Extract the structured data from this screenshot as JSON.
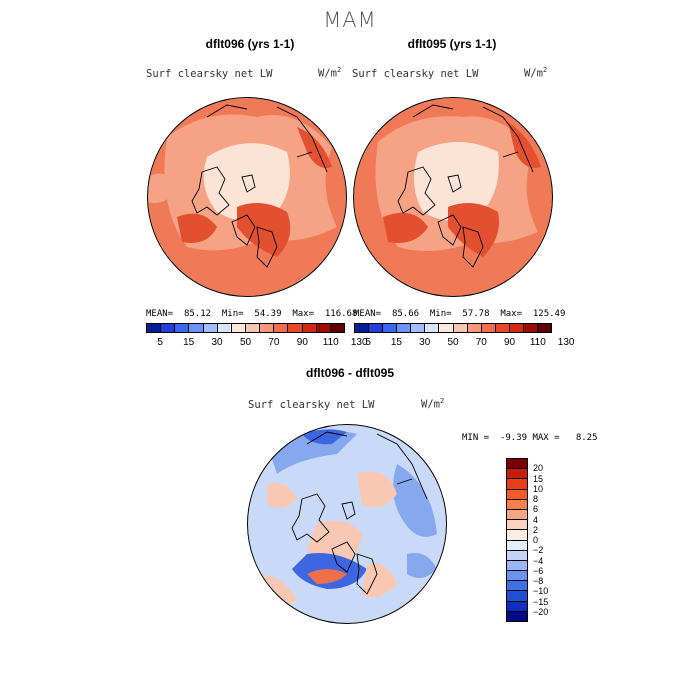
{
  "title": "MAM",
  "panels": [
    {
      "title": "dflt096 (yrs 1-1)",
      "field": "Surf clearsky net LW",
      "unit": "W/m",
      "unit_sup": "2",
      "mean": "85.12",
      "min": "54.39",
      "max": "116.68"
    },
    {
      "title": "dflt095 (yrs 1-1)",
      "field": "Surf clearsky net LW",
      "unit": "W/m",
      "unit_sup": "2",
      "mean": "85.66",
      "min": "57.78",
      "max": "125.49"
    }
  ],
  "diff": {
    "title": "dflt096 - dflt095",
    "field": "Surf clearsky net LW",
    "unit": "W/m",
    "unit_sup": "2",
    "min": "-9.39",
    "max": "8.25"
  },
  "stat_labels": {
    "mean": "MEAN=",
    "min": "Min=",
    "max": "Max=",
    "min_caps": "MIN =",
    "max_caps": "MAX ="
  },
  "colorbar_abs": {
    "colors": [
      "#0a1f8f",
      "#1e3fd8",
      "#3d66ee",
      "#6b92f5",
      "#a2bdf9",
      "#d9e5fb",
      "#fbe7dc",
      "#f7c4ad",
      "#f3977a",
      "#ee6e4f",
      "#e8492d",
      "#cf2a14",
      "#9c0e06",
      "#5e0000"
    ],
    "ticks": [
      "5",
      "15",
      "30",
      "50",
      "70",
      "90",
      "110",
      "130"
    ]
  },
  "colorbar_diff": {
    "colors": [
      "#7a0000",
      "#c81c0c",
      "#e83d16",
      "#f25a26",
      "#f4804d",
      "#f7a583",
      "#fbd2bf",
      "#fdeee4",
      "#e6eefb",
      "#c3d4f6",
      "#98b6f1",
      "#6b93ec",
      "#3f6fe5",
      "#1f4fd6",
      "#0c2fbf",
      "#000b86"
    ],
    "ticks": [
      "20",
      "15",
      "10",
      "8",
      "6",
      "4",
      "2",
      "0",
      "−2",
      "−4",
      "−6",
      "−8",
      "−10",
      "−15",
      "−20"
    ]
  },
  "maps": {
    "abs_base": "#f07a57",
    "abs_dark": "#e2502f",
    "abs_mid": "#f5a384",
    "abs_light": "#fbe3d6",
    "diff_base": "#c9daf8",
    "diff_blue": "#86a8ef",
    "diff_dark": "#3d66e0",
    "diff_pink": "#f8c8b3",
    "diff_red": "#ee6f4c"
  }
}
